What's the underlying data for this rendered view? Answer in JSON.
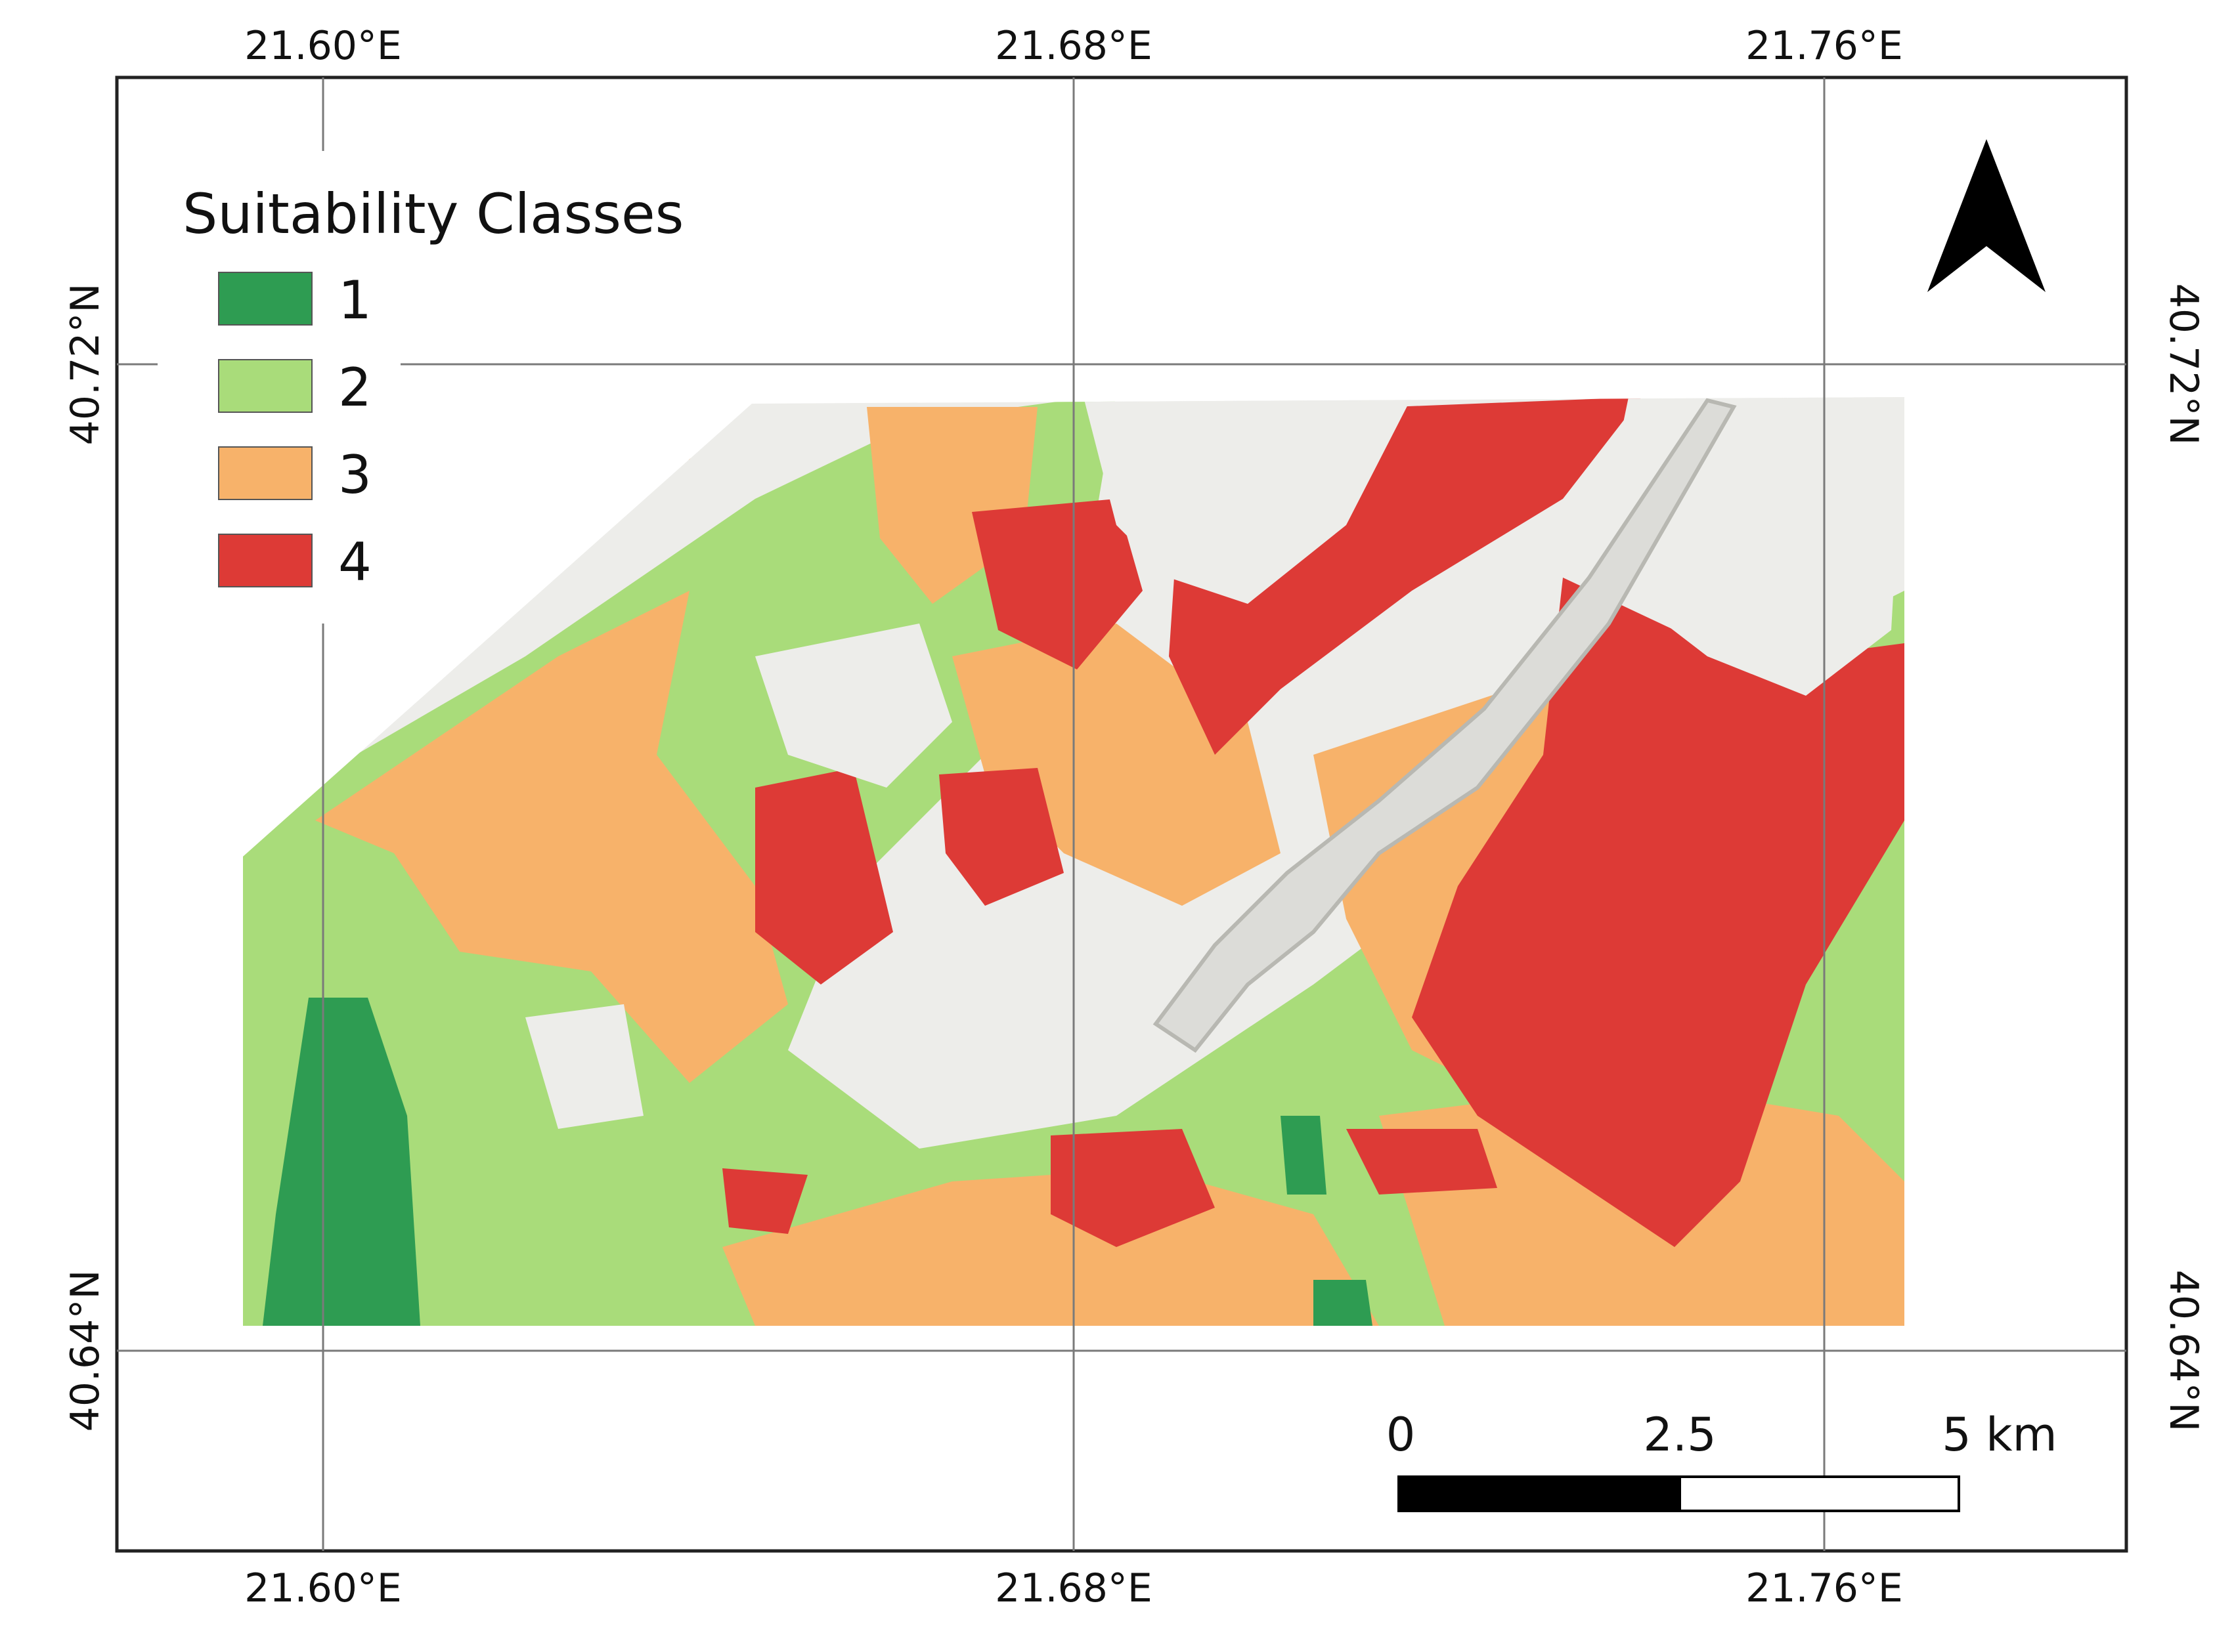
{
  "map": {
    "longitude_labels": [
      "21.60°E",
      "21.68°E",
      "21.76°E"
    ],
    "latitude_labels": [
      "40.72°N",
      "40.64°N"
    ]
  },
  "legend": {
    "title": "Suitability Classes",
    "classes": [
      {
        "label": "1",
        "color": "#2e9c52"
      },
      {
        "label": "2",
        "color": "#a9dc7a"
      },
      {
        "label": "3",
        "color": "#f7b26a"
      },
      {
        "label": "4",
        "color": "#dd3a36"
      }
    ]
  },
  "scale_bar": {
    "labels": [
      "0",
      "2.5",
      "5 km"
    ]
  },
  "north_arrow": {
    "icon": "north-arrow-icon"
  },
  "colors": {
    "hillshade": "#ededea",
    "grid": "#7a7a7a",
    "frame": "#222222"
  }
}
